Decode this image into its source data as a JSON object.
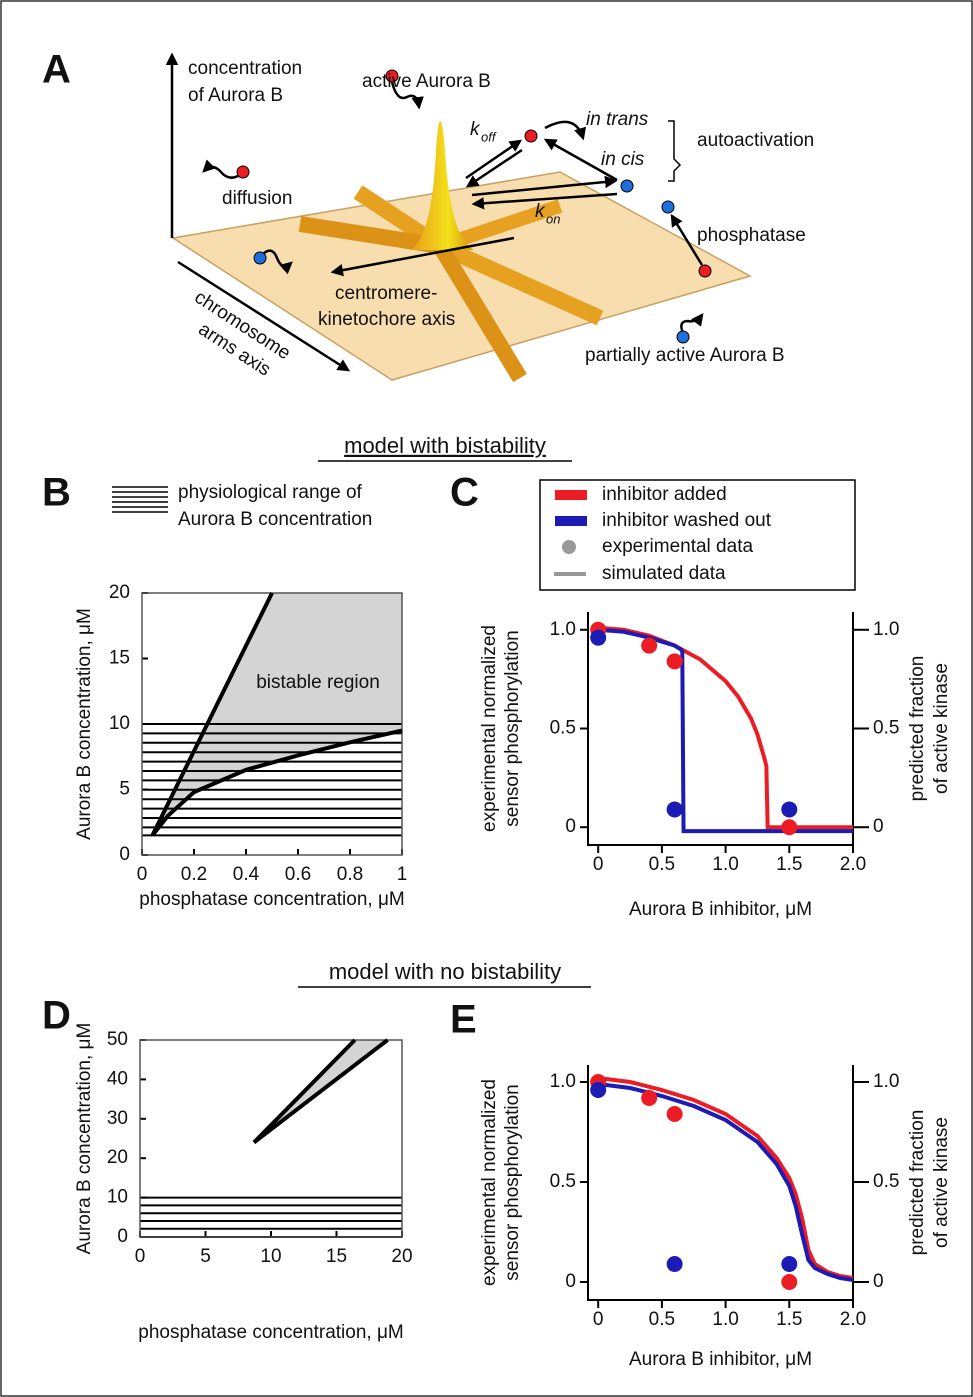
{
  "panel_labels": [
    "A",
    "B",
    "C",
    "D",
    "E"
  ],
  "panel_A": {
    "vertical_axis": [
      "concentration",
      "of Aurora B"
    ],
    "active": "active Aurora B",
    "k_off": {
      "base": "k",
      "sub": "off"
    },
    "k_on": {
      "base": "k",
      "sub": "on"
    },
    "in_trans": "in trans",
    "in_cis": "in cis",
    "autoactivation": "autoactivation",
    "diffusion": "diffusion",
    "phosphatase": "phosphatase",
    "centromere_axis": [
      "centromere-",
      "kinetochore axis"
    ],
    "arms_axis": [
      "chromosome",
      "arms axis"
    ],
    "partially_active": "partially active Aurora B"
  },
  "section_titles": [
    "model with bistability",
    "model with no bistability"
  ],
  "chart_data": [
    {
      "type": "area",
      "xlabel": "phosphatase concentration, μM",
      "ylabel": "Aurora B concentration, μM",
      "legend": [
        "physiological range of",
        "Aurora B concentration"
      ],
      "annotation": "bistable region",
      "xlim": [
        0,
        1
      ],
      "ylim": [
        0,
        20
      ],
      "xticks": [
        0,
        0.2,
        0.4,
        0.6,
        0.8,
        1
      ],
      "yticks": [
        0,
        5,
        10,
        15,
        20
      ],
      "fill": "#d4d4d4",
      "hatch_range": [
        1.5,
        10
      ],
      "boundaries": [
        {
          "x": [
            0.04,
            0.5
          ],
          "y": [
            1.5,
            20
          ]
        },
        {
          "x": [
            0.04,
            0.1,
            0.2,
            0.4,
            0.6,
            0.8,
            1
          ],
          "y": [
            1.5,
            3,
            4.8,
            6.5,
            7.6,
            8.6,
            9.5
          ]
        }
      ]
    },
    {
      "type": "line",
      "xlabel": "Aurora B inhibitor, μM",
      "ylabel": [
        "experimental normalized",
        "sensor phosphorylation"
      ],
      "y2label": [
        "predicted fraction",
        "of active kinase"
      ],
      "xlim": [
        -0.08,
        2.0
      ],
      "ylim": [
        -0.09,
        1.09
      ],
      "y2lim": [
        -0.09,
        1.09
      ],
      "xticks": [
        0,
        0.5,
        {
          "value": 1,
          "label": "1.0"
        },
        1.5,
        {
          "value": 2,
          "label": "2.0"
        }
      ],
      "yticks": [
        0,
        0.5,
        {
          "value": 1,
          "label": "1.0"
        }
      ],
      "y2ticks": [
        0,
        0.5,
        {
          "value": 1,
          "label": "1.0"
        }
      ],
      "series": [
        {
          "name": "inhibitor added",
          "color": "#ec1c24",
          "points": {
            "x": [
              0,
              0.4,
              0.6,
              1.5
            ],
            "y": [
              1.0,
              0.92,
              0.84,
              0.0
            ]
          },
          "curve": {
            "x": [
              0,
              0.2,
              0.4,
              0.6,
              0.8,
              1.0,
              1.1,
              1.2,
              1.25,
              1.3,
              1.32,
              1.33,
              1.5,
              2.0
            ],
            "y": [
              1.01,
              1.0,
              0.97,
              0.92,
              0.85,
              0.74,
              0.66,
              0.55,
              0.47,
              0.36,
              0.31,
              0.0,
              0.0,
              0.0
            ]
          }
        },
        {
          "name": "inhibitor washed out",
          "color": "#1c1cb4",
          "points": {
            "x": [
              0,
              0.6,
              1.5
            ],
            "y": [
              0.96,
              0.09,
              0.09
            ]
          },
          "curve": {
            "x": [
              0,
              0.2,
              0.4,
              0.6,
              0.65,
              0.66,
              0.67,
              1.0,
              1.5,
              2.0
            ],
            "y": [
              1.0,
              0.99,
              0.96,
              0.92,
              0.9,
              0.89,
              -0.02,
              -0.02,
              -0.02,
              -0.02
            ]
          }
        }
      ],
      "marker_legend": [
        {
          "name": "experimental data",
          "color": "#999999"
        },
        {
          "name": "simulated data",
          "color": "#999999"
        }
      ]
    },
    {
      "type": "area",
      "xlabel": "phosphatase concentration, μM",
      "ylabel": "Aurora B concentration, μM",
      "xlim": [
        0,
        20
      ],
      "ylim": [
        0,
        50
      ],
      "xticks": [
        0,
        5,
        10,
        15,
        20
      ],
      "yticks": [
        0,
        10,
        20,
        30,
        40,
        50
      ],
      "fill": "#d4d4d4",
      "hatch_range": [
        0,
        10
      ],
      "boundaries": [
        {
          "x": [
            8.7,
            16.4
          ],
          "y": [
            24,
            50
          ]
        },
        {
          "x": [
            8.7,
            18.9
          ],
          "y": [
            24,
            50
          ]
        }
      ]
    },
    {
      "type": "line",
      "xlabel": "Aurora B inhibitor, μM",
      "ylabel": [
        "experimental normalized",
        "sensor phosphorylation"
      ],
      "y2label": [
        "predicted fraction",
        "of active kinase"
      ],
      "xlim": [
        -0.08,
        2.0
      ],
      "ylim": [
        -0.09,
        1.085
      ],
      "y2lim": [
        -0.09,
        1.085
      ],
      "xticks": [
        0,
        0.5,
        {
          "value": 1,
          "label": "1.0"
        },
        1.5,
        {
          "value": 2,
          "label": "2.0"
        }
      ],
      "yticks": [
        0,
        0.5,
        {
          "value": 1,
          "label": "1.0"
        }
      ],
      "y2ticks": [
        0,
        0.5,
        {
          "value": 1,
          "label": "1.0"
        }
      ],
      "series": [
        {
          "color": "#ec1c24",
          "points": {
            "x": [
              0,
              0.4,
              0.6,
              1.5
            ],
            "y": [
              1.0,
              0.92,
              0.84,
              0.0
            ]
          },
          "curve": {
            "x": [
              0,
              0.25,
              0.5,
              0.75,
              1.0,
              1.25,
              1.4,
              1.5,
              1.55,
              1.6,
              1.65,
              1.7,
              1.8,
              1.9,
              2.0
            ],
            "y": [
              1.02,
              1.0,
              0.96,
              0.91,
              0.84,
              0.73,
              0.62,
              0.52,
              0.44,
              0.32,
              0.16,
              0.09,
              0.05,
              0.03,
              0.02
            ]
          }
        },
        {
          "color": "#1c1cb4",
          "points": {
            "x": [
              0,
              0.6,
              1.5
            ],
            "y": [
              0.96,
              0.09,
              0.09
            ]
          },
          "curve": {
            "x": [
              0,
              0.25,
              0.5,
              0.75,
              1.0,
              1.25,
              1.4,
              1.5,
              1.55,
              1.6,
              1.65,
              1.7,
              1.8,
              1.9,
              2.0
            ],
            "y": [
              0.99,
              0.97,
              0.93,
              0.88,
              0.81,
              0.7,
              0.59,
              0.48,
              0.38,
              0.24,
              0.11,
              0.07,
              0.04,
              0.02,
              0.01
            ]
          }
        }
      ]
    }
  ]
}
